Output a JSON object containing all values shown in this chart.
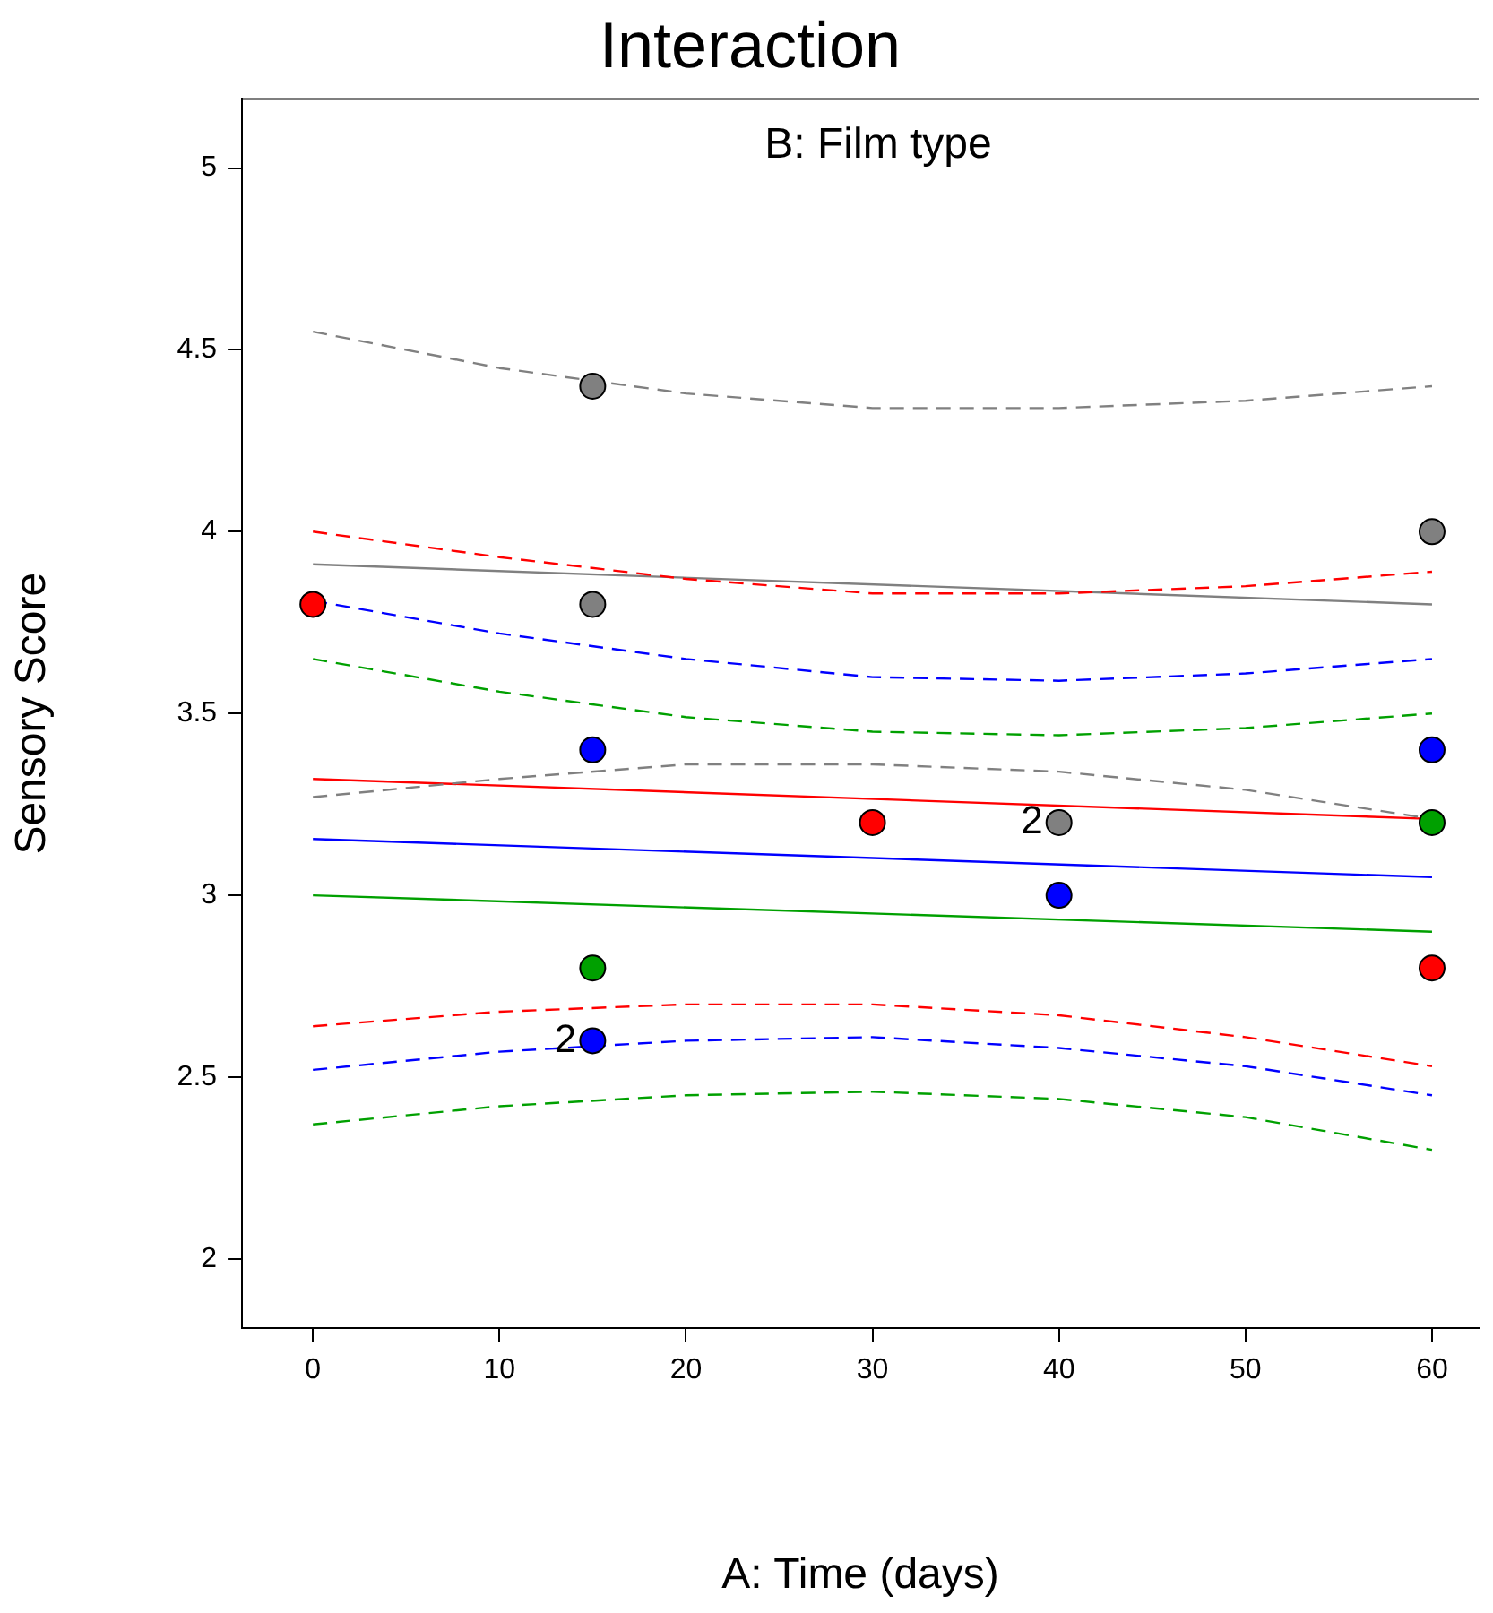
{
  "chart_data": {
    "type": "scatter",
    "title": "Interaction",
    "xlabel": "A: Time (days)",
    "ylabel": "Sensory Score",
    "xlim": [
      -3.8,
      62.5
    ],
    "xticks": [
      0,
      10,
      20,
      30,
      40,
      50,
      60
    ],
    "ylim": [
      1.81,
      5.19
    ],
    "yticks": [
      2,
      2.5,
      3,
      3.5,
      4,
      4.5,
      5
    ],
    "grid": false,
    "legend": false,
    "annotations": [
      "B: Film type",
      {
        "text": "2",
        "x": 40,
        "y": 3.2
      },
      {
        "text": "2",
        "x": 15,
        "y": 2.6
      }
    ],
    "series": [
      {
        "type": "line",
        "color": "#808080",
        "line_style": "dashed",
        "marker": "none",
        "x": [
          0,
          10,
          20,
          30,
          40,
          50,
          60
        ],
        "values": [
          4.55,
          4.45,
          4.38,
          4.34,
          4.34,
          4.36,
          4.4
        ]
      },
      {
        "type": "line",
        "color": "#808080",
        "line_style": "dashed",
        "marker": "none",
        "x": [
          0,
          10,
          20,
          30,
          40,
          50,
          60
        ],
        "values": [
          3.27,
          3.32,
          3.36,
          3.36,
          3.34,
          3.29,
          3.21
        ]
      },
      {
        "type": "line",
        "color": "#ff0000",
        "line_style": "dashed",
        "marker": "none",
        "x": [
          0,
          10,
          20,
          30,
          40,
          50,
          60
        ],
        "values": [
          4.0,
          3.93,
          3.87,
          3.83,
          3.83,
          3.85,
          3.89
        ]
      },
      {
        "type": "line",
        "color": "#ff0000",
        "line_style": "dashed",
        "marker": "none",
        "x": [
          0,
          10,
          20,
          30,
          40,
          50,
          60
        ],
        "values": [
          2.64,
          2.68,
          2.7,
          2.7,
          2.67,
          2.61,
          2.53
        ]
      },
      {
        "type": "line",
        "color": "#0000ff",
        "line_style": "dashed",
        "marker": "none",
        "x": [
          0,
          10,
          20,
          30,
          40,
          50,
          60
        ],
        "values": [
          3.81,
          3.72,
          3.65,
          3.6,
          3.59,
          3.61,
          3.65
        ]
      },
      {
        "type": "line",
        "color": "#0000ff",
        "line_style": "dashed",
        "marker": "none",
        "x": [
          0,
          10,
          20,
          30,
          40,
          50,
          60
        ],
        "values": [
          2.52,
          2.57,
          2.6,
          2.61,
          2.58,
          2.53,
          2.45
        ]
      },
      {
        "type": "line",
        "color": "#00a000",
        "line_style": "dashed",
        "marker": "none",
        "x": [
          0,
          10,
          20,
          30,
          40,
          50,
          60
        ],
        "values": [
          3.65,
          3.56,
          3.49,
          3.45,
          3.44,
          3.46,
          3.5
        ]
      },
      {
        "type": "line",
        "color": "#00a000",
        "line_style": "dashed",
        "marker": "none",
        "x": [
          0,
          10,
          20,
          30,
          40,
          50,
          60
        ],
        "values": [
          2.37,
          2.42,
          2.45,
          2.46,
          2.44,
          2.39,
          2.3
        ]
      },
      {
        "type": "line",
        "color": "#808080",
        "line_style": "solid",
        "marker": "none",
        "x": [
          0,
          60
        ],
        "values": [
          3.91,
          3.8
        ]
      },
      {
        "type": "line",
        "color": "#ff0000",
        "line_style": "solid",
        "marker": "none",
        "x": [
          0,
          60
        ],
        "values": [
          3.32,
          3.21
        ]
      },
      {
        "type": "line",
        "color": "#0000ff",
        "line_style": "solid",
        "marker": "none",
        "x": [
          0,
          60
        ],
        "values": [
          3.155,
          3.05
        ]
      },
      {
        "type": "line",
        "color": "#00a000",
        "line_style": "solid",
        "marker": "none",
        "x": [
          0,
          60
        ],
        "values": [
          3.0,
          2.9
        ]
      },
      {
        "type": "scatter",
        "color": "#808080",
        "marker": "circle",
        "x": [
          15,
          15,
          40,
          60
        ],
        "values": [
          4.4,
          3.8,
          3.2,
          4.0
        ]
      },
      {
        "type": "scatter",
        "color": "#ff0000",
        "marker": "circle",
        "x": [
          0,
          30,
          60
        ],
        "values": [
          3.8,
          3.2,
          2.8
        ]
      },
      {
        "type": "scatter",
        "color": "#0000ff",
        "marker": "circle",
        "x": [
          15,
          15,
          40,
          60
        ],
        "values": [
          3.4,
          2.6,
          3.0,
          3.4
        ]
      },
      {
        "type": "scatter",
        "color": "#00a000",
        "marker": "circle",
        "x": [
          15,
          60
        ],
        "values": [
          2.8,
          3.2
        ]
      }
    ]
  }
}
